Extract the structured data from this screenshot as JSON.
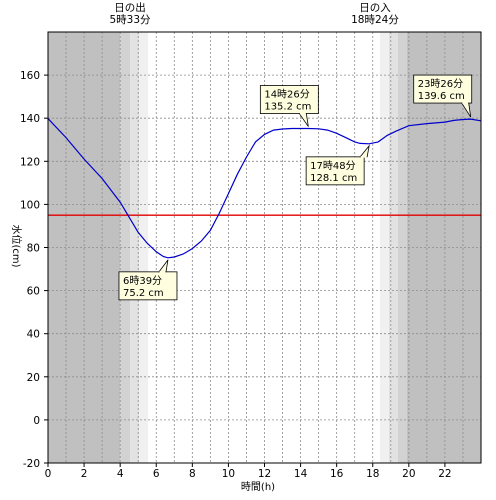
{
  "chart_data": {
    "type": "line",
    "xlabel": "時間(h)",
    "ylabel": "水位(cm)",
    "xlim": [
      0,
      24
    ],
    "ylim": [
      -20,
      180
    ],
    "xticks": [
      0,
      2,
      4,
      6,
      8,
      10,
      12,
      14,
      16,
      18,
      20,
      22
    ],
    "xtick_labels": [
      "0",
      "2",
      "4",
      "6",
      "8",
      "10",
      "12",
      "14",
      "16",
      "18",
      "20",
      "22"
    ],
    "yticks": [
      -20,
      0,
      20,
      40,
      60,
      80,
      100,
      120,
      140,
      160
    ],
    "ytick_labels": [
      "-20",
      "0",
      "20",
      "40",
      "60",
      "80",
      "100",
      "120",
      "140",
      "160"
    ],
    "grid": true,
    "sunrise": {
      "label": "日の出",
      "time_label": "5時33分",
      "hour": 5.55
    },
    "sunset": {
      "label": "日の入",
      "time_label": "18時24分",
      "hour": 18.4
    },
    "reference_line": {
      "value": 95,
      "color": "#e00000"
    },
    "series": [
      {
        "color": "#0000cc",
        "x": [
          0,
          1,
          2,
          3,
          4,
          4.5,
          5,
          5.5,
          6,
          6.4,
          6.65,
          7,
          7.5,
          8,
          8.5,
          9,
          9.5,
          10,
          10.5,
          11,
          11.5,
          12,
          12.5,
          13,
          13.5,
          14,
          14.43,
          15,
          15.5,
          16,
          16.5,
          17,
          17.3,
          17.8,
          18.3,
          18.8,
          19.3,
          20,
          21,
          22,
          22.5,
          23,
          23.43,
          24
        ],
        "y": [
          139.8,
          131,
          121,
          112,
          101,
          94,
          87,
          82,
          78,
          75.8,
          75.2,
          75.6,
          77,
          79.5,
          83,
          88,
          96,
          105,
          114,
          122,
          129,
          132.5,
          134.5,
          135,
          135.2,
          135.2,
          135.2,
          135.1,
          134.5,
          133,
          131,
          129,
          128.3,
          128.1,
          129,
          132,
          134,
          136.5,
          137.5,
          138.2,
          139,
          139.4,
          139.6,
          138.8
        ]
      }
    ],
    "annotations": [
      {
        "time": "6時39分",
        "value": "75.2 cm",
        "x": 6.65,
        "y": 75.2
      },
      {
        "time": "14時26分",
        "value": "135.2 cm",
        "x": 14.43,
        "y": 135.2
      },
      {
        "time": "17時48分",
        "value": "128.1 cm",
        "x": 17.8,
        "y": 128.1
      },
      {
        "time": "23時26分",
        "value": "139.6 cm",
        "x": 23.43,
        "y": 139.6
      }
    ],
    "colors": {
      "night": "#c0c0c0",
      "twilight": [
        "#d2d2d2",
        "#e2e2e2",
        "#f0f0f0"
      ],
      "day": "#ffffff",
      "label_box": "#ffffe0"
    }
  }
}
